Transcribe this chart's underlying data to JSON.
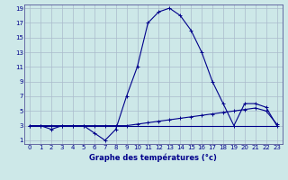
{
  "xlabel": "Graphe des températures (°c)",
  "background_color": "#cde8e8",
  "grid_color": "#aabbcc",
  "line_color": "#00008b",
  "spine_color": "#555599",
  "xlim": [
    -0.5,
    23.5
  ],
  "ylim": [
    0.5,
    19.5
  ],
  "xticks": [
    0,
    1,
    2,
    3,
    4,
    5,
    6,
    7,
    8,
    9,
    10,
    11,
    12,
    13,
    14,
    15,
    16,
    17,
    18,
    19,
    20,
    21,
    22,
    23
  ],
  "yticks": [
    1,
    3,
    5,
    7,
    9,
    11,
    13,
    15,
    17,
    19
  ],
  "line1_x": [
    0,
    1,
    2,
    3,
    4,
    5,
    6,
    7,
    8,
    9,
    10,
    11,
    12,
    13,
    14,
    15,
    16,
    17,
    18,
    19,
    20,
    21,
    22,
    23
  ],
  "line1_y": [
    3,
    3,
    2.5,
    3,
    3,
    3,
    2,
    1,
    2.5,
    7,
    11,
    17,
    18.5,
    19,
    18,
    16,
    13,
    9,
    6,
    3,
    6,
    6,
    5.5,
    3
  ],
  "line2_x": [
    0,
    1,
    2,
    3,
    4,
    5,
    6,
    7,
    8,
    9,
    10,
    11,
    12,
    13,
    14,
    15,
    16,
    17,
    18,
    19,
    20,
    21,
    22,
    23
  ],
  "line2_y": [
    3,
    3,
    3,
    3,
    3,
    3,
    3,
    3,
    3,
    3,
    3.2,
    3.4,
    3.6,
    3.8,
    4.0,
    4.2,
    4.4,
    4.6,
    4.8,
    5.0,
    5.2,
    5.4,
    5.0,
    3.2
  ],
  "line3_x": [
    0,
    23
  ],
  "line3_y": [
    3.0,
    3.0
  ],
  "xlabel_fontsize": 6.0,
  "tick_fontsize": 5.0
}
